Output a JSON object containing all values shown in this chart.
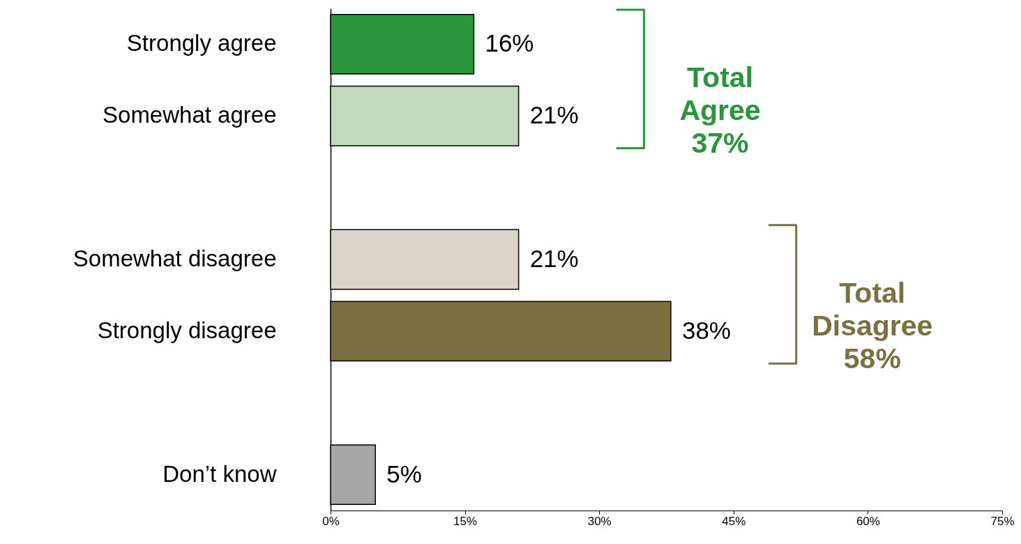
{
  "chart_data": {
    "type": "bar",
    "orientation": "horizontal",
    "categories": [
      "Strongly agree",
      "Somewhat agree",
      null,
      "Somewhat disagree",
      "Strongly disagree",
      null,
      "Don’t know"
    ],
    "values": [
      16,
      21,
      null,
      21,
      38,
      null,
      5
    ],
    "colors": [
      "#2a963c",
      "#c2d9bc",
      null,
      "#d9d6c9",
      "#7a7040",
      null,
      "#a6a6a6"
    ],
    "value_labels": [
      "16%",
      "21%",
      null,
      "21%",
      "38%",
      null,
      "5%"
    ],
    "xlim": [
      0,
      75
    ],
    "xticks": [
      {
        "value": 0,
        "label": "0%"
      },
      {
        "value": 15,
        "label": "15%"
      },
      {
        "value": 30,
        "label": "30%"
      },
      {
        "value": 45,
        "label": "45%"
      },
      {
        "value": 60,
        "label": "60%"
      },
      {
        "value": 75,
        "label": "75%"
      }
    ],
    "annotations": [
      "Total Agree 37%",
      "Total Disagree 58%"
    ]
  }
}
